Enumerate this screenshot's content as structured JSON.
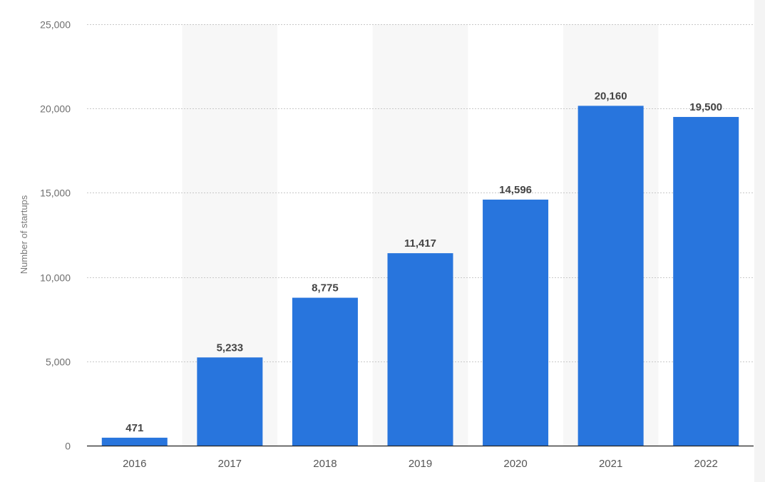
{
  "chart_data": {
    "type": "bar",
    "categories": [
      "2016",
      "2017",
      "2018",
      "2019",
      "2020",
      "2021",
      "2022"
    ],
    "values": [
      471,
      5233,
      8775,
      11417,
      14596,
      20160,
      19500
    ],
    "value_labels": [
      "471",
      "5,233",
      "8,775",
      "11,417",
      "14,596",
      "20,160",
      "19,500"
    ],
    "ylabel": "Number of startups",
    "ylim": [
      0,
      25000
    ],
    "yticks": [
      0,
      5000,
      10000,
      15000,
      20000,
      25000
    ],
    "ytick_labels": [
      "0",
      "5,000",
      "10,000",
      "15,000",
      "20,000",
      "25,000"
    ],
    "grid": true,
    "bar_color": "#2875dd",
    "band_color": "#f7f7f7"
  }
}
